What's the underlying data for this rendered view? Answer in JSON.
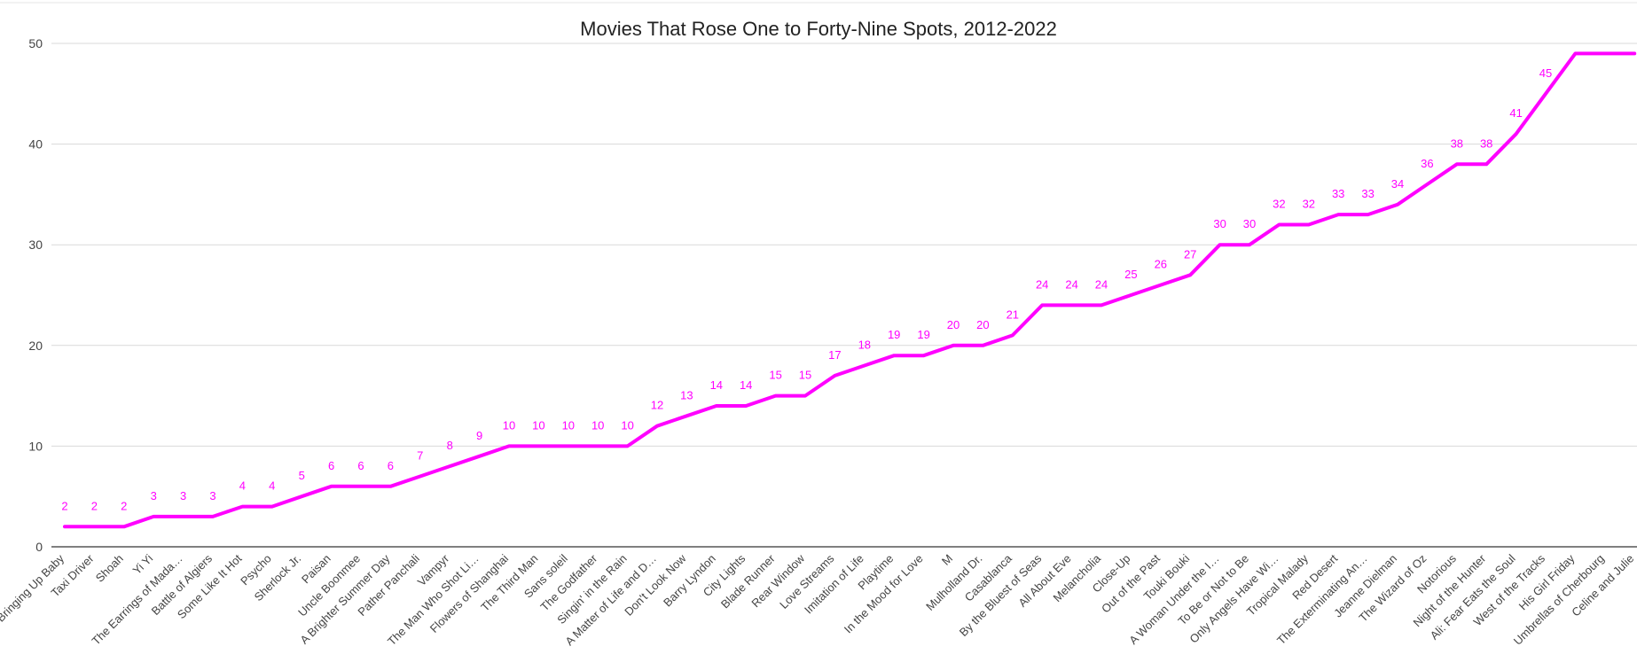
{
  "chart_data": {
    "type": "line",
    "title": "Movies That Rose One to Forty-Nine Spots, 2012-2022",
    "xlabel": "",
    "ylabel": "",
    "ylim": [
      0,
      50
    ],
    "yticks": [
      0,
      10,
      20,
      30,
      40,
      50
    ],
    "grid": true,
    "legend": "none",
    "line_color": "#ff00ff",
    "categories": [
      "Bringing Up Baby",
      "Taxi Driver",
      "Shoah",
      "Yi Yi",
      "The Earrings of Mada…",
      "Battle of Algiers",
      "Some Like It Hot",
      "Psycho",
      "Sherlock Jr.",
      "Paisan",
      "Uncle Boonmee",
      "A Brighter Summer Day",
      "Pather Panchali",
      "Vampyr",
      "The Man Who Shot Li…",
      "Flowers of Shanghai",
      "The Third Man",
      "Sans soleil",
      "The Godfather",
      "Singin' in the Rain",
      "A Matter of Life and D…",
      "Don't Look Now",
      "Barry Lyndon",
      "City Lights",
      "Blade Runner",
      "Rear Window",
      "Love Streams",
      "Imitation of Life",
      "Playtime",
      "In the Mood for Love",
      "M",
      "Mulholland Dr.",
      "Casablanca",
      "By the Bluest of Seas",
      "All About Eve",
      "Melancholia",
      "Close-Up",
      "Out of the Past",
      "Touki Bouki",
      "A Woman Under the I…",
      "To Be or Not to Be",
      "Only Angels Have Wi…",
      "Tropical Malady",
      "Red Desert",
      "The Exterminating An…",
      "Jeanne Dielman",
      "The Wizard of Oz",
      "Notorious",
      "Night of the Hunter",
      "Ali: Fear Eats the Soul",
      "West of the Tracks",
      "His Girl Friday",
      "Umbrellas of Cherbourg",
      "Celine and Julie"
    ],
    "values": [
      2,
      2,
      2,
      3,
      3,
      3,
      4,
      4,
      5,
      6,
      6,
      6,
      7,
      8,
      9,
      10,
      10,
      10,
      10,
      10,
      12,
      13,
      14,
      14,
      15,
      15,
      17,
      18,
      19,
      19,
      20,
      20,
      21,
      24,
      24,
      24,
      25,
      26,
      27,
      30,
      30,
      32,
      32,
      33,
      33,
      34,
      36,
      38,
      38,
      41,
      45,
      49,
      49,
      49
    ],
    "data_labels": [
      "2",
      "2",
      "2",
      "3",
      "3",
      "3",
      "4",
      "4",
      "5",
      "6",
      "6",
      "6",
      "7",
      "8",
      "9",
      "10",
      "10",
      "10",
      "10",
      "10",
      "12",
      "13",
      "14",
      "14",
      "15",
      "15",
      "17",
      "18",
      "19",
      "19",
      "20",
      "20",
      "21",
      "24",
      "24",
      "24",
      "25",
      "26",
      "27",
      "30",
      "30",
      "32",
      "32",
      "33",
      "33",
      "34",
      "36",
      "38",
      "38",
      "41",
      "45",
      "",
      "",
      ""
    ]
  }
}
